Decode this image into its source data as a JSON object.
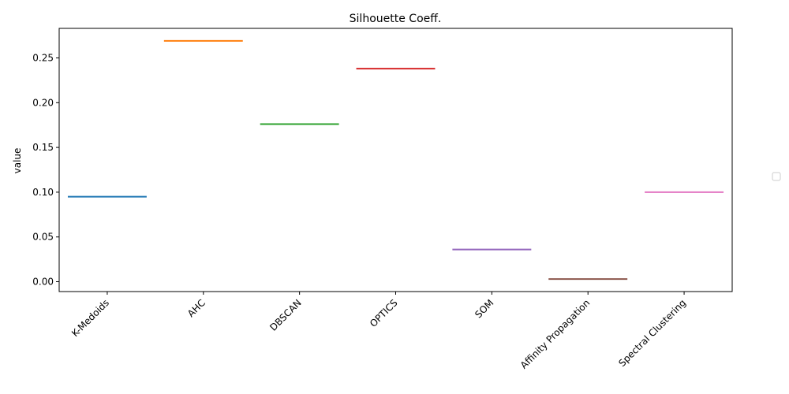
{
  "chart_data": {
    "type": "bar",
    "title": "Silhouette Coeff.",
    "xlabel": "",
    "ylabel": "value",
    "categories": [
      "K-Medoids",
      "AHC",
      "DBSCAN",
      "OPTICS",
      "SOM",
      "Affinity Propagation",
      "Spectral Clustering"
    ],
    "values": [
      0.095,
      0.269,
      0.176,
      0.238,
      0.036,
      0.003,
      0.1
    ],
    "colors": [
      "#1f77b4",
      "#ff7f0e",
      "#2ca02c",
      "#d62728",
      "#9467bd",
      "#8c564b",
      "#e377c2"
    ],
    "ylim": [
      -0.011,
      0.283
    ],
    "yticks": [
      0.0,
      0.05,
      0.1,
      0.15,
      0.2,
      0.25
    ],
    "ytick_labels": [
      "0.00",
      "0.05",
      "0.10",
      "0.15",
      "0.20",
      "0.25"
    ],
    "grid": false,
    "legend": {
      "placement": "right",
      "entries": []
    }
  }
}
